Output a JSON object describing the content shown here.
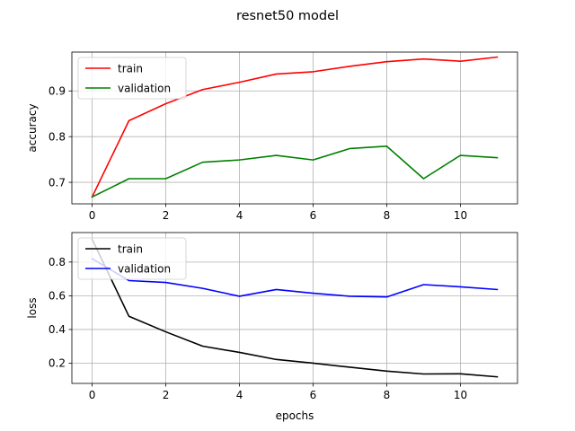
{
  "chart_data": [
    {
      "type": "line",
      "suptitle": "resnet50 model",
      "title": "",
      "xlabel": "",
      "ylabel": "accuracy",
      "x": [
        0,
        1,
        2,
        3,
        4,
        5,
        6,
        7,
        8,
        9,
        10,
        11
      ],
      "xlim": [
        -0.55,
        11.55
      ],
      "ylim": [
        0.653,
        0.985
      ],
      "xticks": [
        0,
        2,
        4,
        6,
        8,
        10
      ],
      "yticks": [
        0.7,
        0.8,
        0.9
      ],
      "ytick_labels": [
        "0.7",
        "0.8",
        "0.9"
      ],
      "grid": true,
      "legend_position": "upper left",
      "series": [
        {
          "name": "train",
          "color": "#ff0000",
          "values": [
            0.668,
            0.835,
            0.872,
            0.903,
            0.919,
            0.937,
            0.942,
            0.954,
            0.964,
            0.97,
            0.965,
            0.974
          ]
        },
        {
          "name": "validation",
          "color": "#008000",
          "values": [
            0.668,
            0.708,
            0.708,
            0.744,
            0.749,
            0.759,
            0.749,
            0.774,
            0.779,
            0.708,
            0.759,
            0.754
          ]
        }
      ]
    },
    {
      "type": "line",
      "title": "",
      "xlabel": "epochs",
      "ylabel": "loss",
      "x": [
        0,
        1,
        2,
        3,
        4,
        5,
        6,
        7,
        8,
        9,
        10,
        11
      ],
      "xlim": [
        -0.55,
        11.55
      ],
      "ylim": [
        0.08,
        0.975
      ],
      "xticks": [
        0,
        2,
        4,
        6,
        8,
        10
      ],
      "yticks": [
        0.2,
        0.4,
        0.6,
        0.8
      ],
      "ytick_labels": [
        "0.2",
        "0.4",
        "0.6",
        "0.8"
      ],
      "grid": true,
      "legend_position": "upper left",
      "series": [
        {
          "name": "train",
          "color": "#000000",
          "values": [
            0.935,
            0.478,
            0.386,
            0.301,
            0.264,
            0.222,
            0.2,
            0.176,
            0.153,
            0.136,
            0.137,
            0.119
          ]
        },
        {
          "name": "validation",
          "color": "#0000ff",
          "values": [
            0.82,
            0.69,
            0.679,
            0.644,
            0.597,
            0.637,
            0.615,
            0.597,
            0.593,
            0.666,
            0.653,
            0.637
          ]
        }
      ]
    }
  ]
}
